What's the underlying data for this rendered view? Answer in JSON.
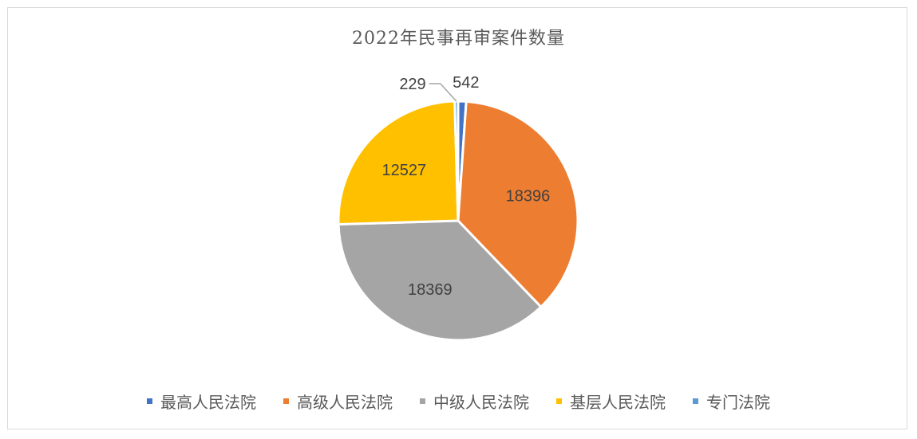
{
  "chart_data": {
    "type": "pie",
    "title": "2022年民事再审案件数量",
    "categories": [
      "最高人民法院",
      "高级人民法院",
      "中级人民法院",
      "基层人民法院",
      "专门法院"
    ],
    "values": [
      542,
      18396,
      18369,
      12527,
      229
    ],
    "colors": [
      "#4472c4",
      "#ed7d31",
      "#a5a5a5",
      "#ffc000",
      "#5b9bd5"
    ],
    "data_labels": [
      "542",
      "18396",
      "18369",
      "12527",
      "229"
    ],
    "legend_position": "bottom",
    "start_angle_deg": 0,
    "direction": "clockwise"
  }
}
